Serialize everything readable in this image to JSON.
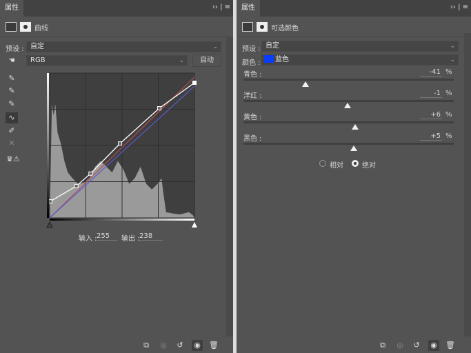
{
  "curves_panel": {
    "tab": "属性",
    "title": "曲线",
    "preset_label": "预设 :",
    "preset_value": "自定",
    "channel_value": "RGB",
    "auto_button": "自动",
    "input_label": "输入 :",
    "input_value": "255",
    "output_label": "输出 :",
    "output_value": "238",
    "tools": [
      "sample-shadow-icon",
      "sample-midtone-icon",
      "sample-highlight-icon",
      "curve-points-icon",
      "pencil-icon",
      "smooth-icon",
      "clipping-warning-icon"
    ],
    "curve_points": [
      [
        1,
        29
      ],
      [
        47,
        56
      ],
      [
        72,
        78
      ],
      [
        124,
        131
      ],
      [
        193,
        193
      ],
      [
        255,
        238
      ]
    ],
    "channel_colors": {
      "rgb": "#ffffff",
      "red": "#b05050",
      "blue": "#5a5ad0"
    }
  },
  "selective_color_panel": {
    "tab": "属性",
    "title": "可选颜色",
    "preset_label": "预设 :",
    "preset_value": "自定",
    "colors_label": "颜色 :",
    "colors_value": "蓝色",
    "swatch_color": "#0a3cff",
    "sliders": [
      {
        "label": "青色 :",
        "value": "-41",
        "num": -41
      },
      {
        "label": "洋红 :",
        "value": "-1",
        "num": -1
      },
      {
        "label": "黄色 :",
        "value": "+6",
        "num": 6
      },
      {
        "label": "黑色 :",
        "value": "+5",
        "num": 5
      }
    ],
    "percent": "%",
    "method_relative": "相对",
    "method_absolute": "绝对",
    "method_selected": "absolute"
  },
  "footer_icons": [
    "clip-to-layer-icon",
    "view-previous-icon",
    "reset-icon",
    "visibility-icon",
    "delete-icon"
  ]
}
